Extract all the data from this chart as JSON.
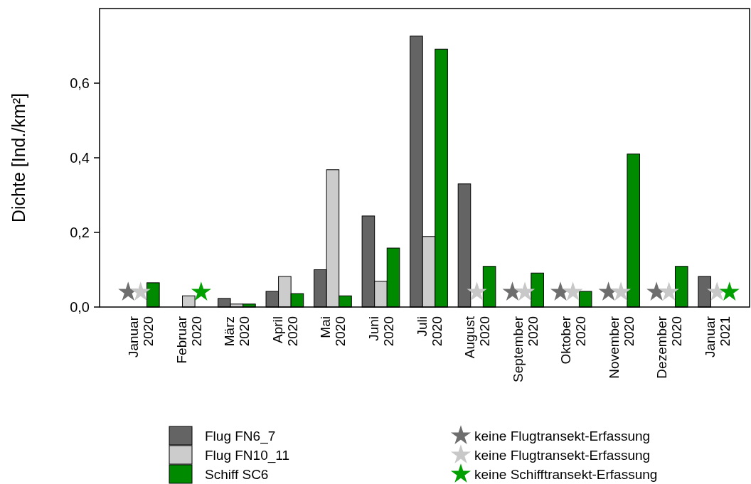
{
  "chart_data": {
    "type": "bar",
    "ylabel": "Dichte [Ind./km²]",
    "categories": [
      "Januar 2020",
      "Februar 2020",
      "März 2020",
      "April 2020",
      "Mai 2020",
      "Juni 2020",
      "Juli 2020",
      "August 2020",
      "September 2020",
      "Oktober 2020",
      "November 2020",
      "Dezember 2020",
      "Januar 2021"
    ],
    "series": [
      {
        "name": "Flug FN6_7",
        "color": "#646464",
        "values": [
          null,
          null,
          0.023,
          0.042,
          0.1,
          0.244,
          0.726,
          0.33,
          null,
          null,
          null,
          null,
          0.082
        ]
      },
      {
        "name": "Flug FN10_11",
        "color": "#cccccc",
        "values": [
          null,
          0.03,
          0.008,
          0.082,
          0.368,
          0.069,
          0.189,
          null,
          null,
          null,
          null,
          null,
          null
        ]
      },
      {
        "name": "Schiff SC6",
        "color": "#008a00",
        "values": [
          0.065,
          null,
          0.008,
          0.036,
          0.03,
          0.158,
          0.691,
          0.109,
          0.091,
          0.042,
          0.41,
          0.109,
          null
        ]
      },
      {
        "name": "keine Flugtransekt-Erfassung",
        "type": "scatter",
        "color": "#6e6e6e",
        "values": [
          0.04,
          null,
          null,
          null,
          null,
          null,
          null,
          null,
          0.04,
          0.04,
          0.04,
          0.04,
          null
        ]
      },
      {
        "name": "keine Flugtransekt-Erfassung",
        "type": "scatter",
        "color": "#c8c8c8",
        "values": [
          0.04,
          null,
          null,
          null,
          null,
          null,
          null,
          0.04,
          0.04,
          0.04,
          0.04,
          0.04,
          0.04
        ]
      },
      {
        "name": "keine Schifftransekt-Erfassung",
        "type": "scatter",
        "color": "#00a000",
        "values": [
          null,
          0.04,
          null,
          null,
          null,
          null,
          null,
          null,
          null,
          null,
          null,
          null,
          0.04
        ]
      }
    ],
    "ylim": [
      0,
      0.8
    ],
    "yticks": [
      {
        "value": 0,
        "label": "0,0"
      },
      {
        "value": 0.2,
        "label": "0,2"
      },
      {
        "value": 0.4,
        "label": "0,4"
      },
      {
        "value": 0.6,
        "label": "0,6"
      }
    ],
    "marker": "star",
    "legend": "bottom",
    "grid": false
  }
}
